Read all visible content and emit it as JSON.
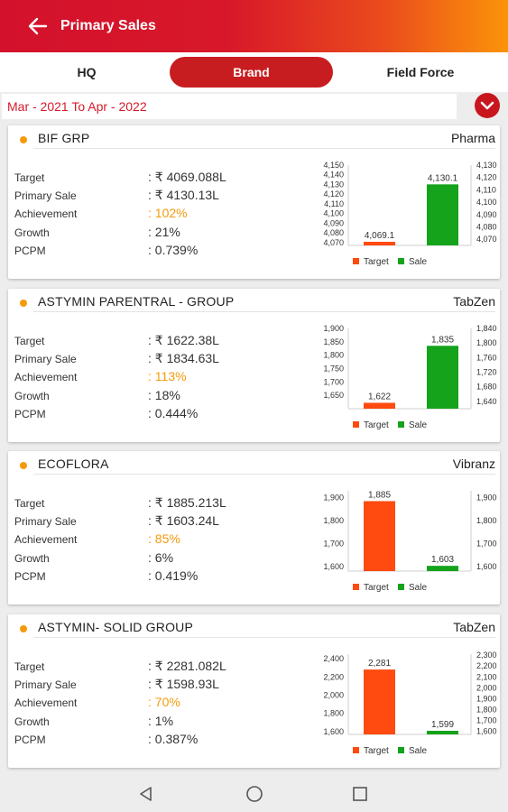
{
  "header": {
    "title": "Primary Sales"
  },
  "tabs": [
    {
      "label": "HQ",
      "active": false
    },
    {
      "label": "Brand",
      "active": true
    },
    {
      "label": "Field Force",
      "active": false
    }
  ],
  "period": "Mar - 2021 To Apr - 2022",
  "field_labels": {
    "target": "Target",
    "primary_sale": "Primary Sale",
    "achievement": "Achievement",
    "growth": "Growth",
    "pcpm": "PCPM"
  },
  "legend": {
    "target": "Target",
    "sale": "Sale"
  },
  "colors": {
    "target": "#ff4a10",
    "sale": "#15a31c",
    "accent": "#c81d20",
    "achievement": "#f59a0b"
  },
  "cards": [
    {
      "brand": "BIF GRP",
      "division": "Pharma",
      "target": ": ₹ 4069.088L",
      "primary_sale": ": ₹ 4130.13L",
      "achievement": ": 102%",
      "growth": ": 21%",
      "pcpm": ": 0.739%",
      "chart_data": {
        "type": "bar",
        "series": [
          {
            "name": "Target",
            "value": 4069.1
          },
          {
            "name": "Sale",
            "value": 4130.1
          }
        ],
        "value_labels": [
          "4,069.1",
          "4,130.1"
        ],
        "ylim_left": [
          4067,
          4150
        ],
        "left_ticks": [
          "4,150",
          "4,140",
          "4,130",
          "4,120",
          "4,110",
          "4,100",
          "4,090",
          "4,080",
          "4,070"
        ],
        "ylim_right": [
          4065,
          4130
        ],
        "right_ticks": [
          "4,130",
          "4,120",
          "4,110",
          "4,100",
          "4,090",
          "4,080",
          "4,070"
        ]
      }
    },
    {
      "brand": "ASTYMIN PARENTRAL - GROUP",
      "division": "TabZen",
      "target": ": ₹ 1622.38L",
      "primary_sale": ": ₹ 1834.63L",
      "achievement": ": 113%",
      "growth": ": 18%",
      "pcpm": ": 0.444%",
      "chart_data": {
        "type": "bar",
        "series": [
          {
            "name": "Target",
            "value": 1622
          },
          {
            "name": "Sale",
            "value": 1835
          }
        ],
        "value_labels": [
          "1,622",
          "1,835"
        ],
        "ylim_left": [
          1600,
          1900
        ],
        "left_ticks": [
          "1,900",
          "1,850",
          "1,800",
          "1,750",
          "1,700",
          "1,650"
        ],
        "ylim_right": [
          1620,
          1840
        ],
        "right_ticks": [
          "1,840",
          "1,800",
          "1,760",
          "1,720",
          "1,680",
          "1,640"
        ]
      }
    },
    {
      "brand": "ECOFLORA",
      "division": "Vibranz",
      "target": ": ₹ 1885.213L",
      "primary_sale": ": ₹ 1603.24L",
      "achievement": ": 85%",
      "growth": ": 6%",
      "pcpm": ": 0.419%",
      "chart_data": {
        "type": "bar",
        "series": [
          {
            "name": "Target",
            "value": 1885
          },
          {
            "name": "Sale",
            "value": 1603
          }
        ],
        "value_labels": [
          "1,885",
          "1,603"
        ],
        "ylim_left": [
          1580,
          1930
        ],
        "left_ticks": [
          "1,900",
          "1,800",
          "1,700",
          "1,600"
        ],
        "ylim_right": [
          1580,
          1930
        ],
        "right_ticks": [
          "1,900",
          "1,800",
          "1,700",
          "1,600"
        ]
      }
    },
    {
      "brand": "ASTYMIN- SOLID GROUP",
      "division": "TabZen",
      "target": ": ₹ 2281.082L",
      "primary_sale": ": ₹ 1598.93L",
      "achievement": ": 70%",
      "growth": ": 1%",
      "pcpm": ": 0.387%",
      "chart_data": {
        "type": "bar",
        "series": [
          {
            "name": "Target",
            "value": 2281
          },
          {
            "name": "Sale",
            "value": 1599
          }
        ],
        "value_labels": [
          "2,281",
          "1,599"
        ],
        "ylim_left": [
          1570,
          2450
        ],
        "left_ticks": [
          "2,400",
          "2,200",
          "2,000",
          "1,800",
          "1,600"
        ],
        "ylim_right": [
          1570,
          2310
        ],
        "right_ticks": [
          "2,300",
          "2,200",
          "2,100",
          "2,000",
          "1,900",
          "1,800",
          "1,700",
          "1,600"
        ]
      }
    }
  ]
}
